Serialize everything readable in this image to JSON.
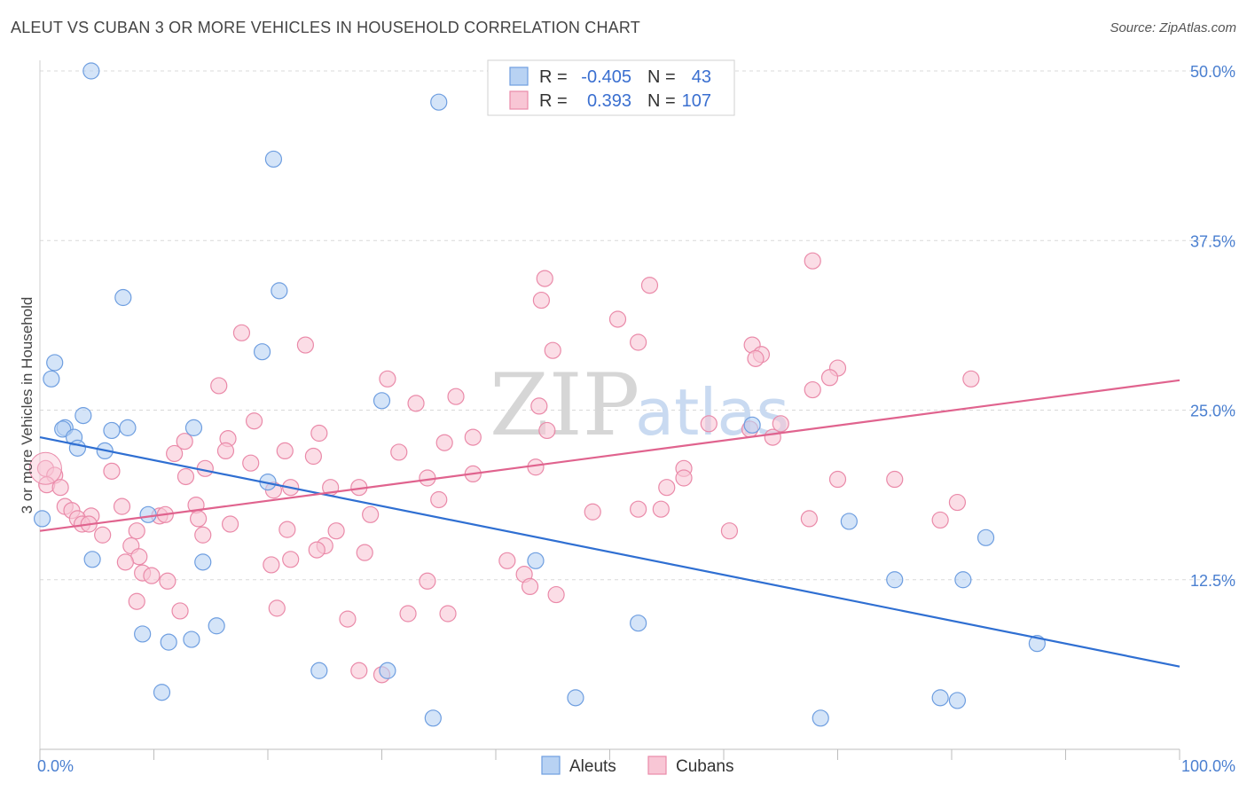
{
  "title": "ALEUT VS CUBAN 3 OR MORE VEHICLES IN HOUSEHOLD CORRELATION CHART",
  "source": "Source: ZipAtlas.com",
  "colors": {
    "aleuts_fill": "#b8d2f3",
    "aleuts_stroke": "#6e9ee0",
    "aleuts_line": "#2f6fd2",
    "cubans_fill": "#f8c6d5",
    "cubans_stroke": "#ea8aa9",
    "cubans_line": "#e0638e",
    "grid": "#d9d9d9",
    "axis_text": "#4a7fd0"
  },
  "legend": {
    "rows": [
      {
        "r_label": "R =",
        "r_value": "-0.405",
        "n_label": "N =",
        "n_value": "43"
      },
      {
        "r_label": "R =",
        "r_value": "0.393",
        "n_label": "N =",
        "n_value": "107"
      }
    ]
  },
  "bottom_legend": [
    "Aleuts",
    "Cubans"
  ],
  "watermark": {
    "zip": "ZIP",
    "atlas": "atlas"
  },
  "chart_data": {
    "type": "scatter",
    "title": "ALEUT VS CUBAN 3 OR MORE VEHICLES IN HOUSEHOLD CORRELATION CHART",
    "xlabel": "",
    "ylabel": "3 or more Vehicles in Household",
    "xlim": [
      0,
      100
    ],
    "ylim": [
      0,
      50
    ],
    "x_tick_labels": [
      "0.0%",
      "100.0%"
    ],
    "y_ticks": [
      12.5,
      25.0,
      37.5,
      50.0
    ],
    "y_tick_labels": [
      "12.5%",
      "25.0%",
      "37.5%",
      "50.0%"
    ],
    "grid": true,
    "series": [
      {
        "name": "Aleuts",
        "r": -0.405,
        "n": 43,
        "trend": {
          "x": [
            0,
            100
          ],
          "y": [
            23.0,
            6.1
          ]
        },
        "points": [
          [
            4.5,
            50.0
          ],
          [
            35.0,
            47.7
          ],
          [
            20.5,
            43.5
          ],
          [
            7.3,
            33.3
          ],
          [
            21.0,
            33.8
          ],
          [
            1.3,
            28.5
          ],
          [
            19.5,
            29.3
          ],
          [
            1.0,
            27.3
          ],
          [
            30.0,
            25.7
          ],
          [
            3.8,
            24.6
          ],
          [
            2.2,
            23.7
          ],
          [
            2.0,
            23.6
          ],
          [
            7.7,
            23.7
          ],
          [
            6.3,
            23.5
          ],
          [
            13.5,
            23.7
          ],
          [
            3.0,
            23.0
          ],
          [
            3.3,
            22.2
          ],
          [
            5.7,
            22.0
          ],
          [
            62.5,
            23.9
          ],
          [
            20.0,
            19.7
          ],
          [
            0.2,
            17.0
          ],
          [
            9.5,
            17.3
          ],
          [
            71.0,
            16.8
          ],
          [
            83.0,
            15.6
          ],
          [
            4.6,
            14.0
          ],
          [
            14.3,
            13.8
          ],
          [
            43.5,
            13.9
          ],
          [
            75.0,
            12.5
          ],
          [
            81.0,
            12.5
          ],
          [
            9.0,
            8.5
          ],
          [
            11.3,
            7.9
          ],
          [
            13.3,
            8.1
          ],
          [
            15.5,
            9.1
          ],
          [
            52.5,
            9.3
          ],
          [
            87.5,
            7.8
          ],
          [
            10.7,
            4.2
          ],
          [
            24.5,
            5.8
          ],
          [
            30.5,
            5.8
          ],
          [
            47.0,
            3.8
          ],
          [
            34.5,
            2.3
          ],
          [
            68.5,
            2.3
          ],
          [
            79.0,
            3.8
          ],
          [
            80.5,
            3.6
          ]
        ]
      },
      {
        "name": "Cubans",
        "r": 0.393,
        "n": 107,
        "trend": {
          "x": [
            0,
            100
          ],
          "y": [
            16.1,
            27.2
          ]
        },
        "points": [
          [
            67.8,
            36.0
          ],
          [
            44.3,
            34.7
          ],
          [
            53.5,
            34.2
          ],
          [
            44.0,
            33.1
          ],
          [
            50.7,
            31.7
          ],
          [
            17.7,
            30.7
          ],
          [
            23.3,
            29.8
          ],
          [
            52.5,
            30.0
          ],
          [
            62.5,
            29.8
          ],
          [
            45.0,
            29.4
          ],
          [
            63.3,
            29.1
          ],
          [
            62.8,
            28.8
          ],
          [
            70.0,
            28.1
          ],
          [
            69.3,
            27.4
          ],
          [
            81.7,
            27.3
          ],
          [
            30.5,
            27.3
          ],
          [
            15.7,
            26.8
          ],
          [
            67.8,
            26.5
          ],
          [
            36.5,
            26.0
          ],
          [
            33.0,
            25.5
          ],
          [
            43.8,
            25.3
          ],
          [
            18.8,
            24.2
          ],
          [
            58.7,
            24.0
          ],
          [
            65.0,
            24.0
          ],
          [
            62.3,
            23.6
          ],
          [
            44.5,
            23.5
          ],
          [
            24.5,
            23.3
          ],
          [
            38.0,
            23.0
          ],
          [
            64.3,
            23.0
          ],
          [
            16.5,
            22.9
          ],
          [
            12.7,
            22.7
          ],
          [
            35.5,
            22.6
          ],
          [
            11.8,
            21.8
          ],
          [
            21.5,
            22.0
          ],
          [
            16.3,
            22.0
          ],
          [
            31.5,
            21.9
          ],
          [
            24.0,
            21.6
          ],
          [
            18.5,
            21.1
          ],
          [
            14.5,
            20.7
          ],
          [
            0.5,
            20.7
          ],
          [
            6.3,
            20.5
          ],
          [
            43.5,
            20.8
          ],
          [
            56.5,
            20.7
          ],
          [
            12.8,
            20.1
          ],
          [
            38.0,
            20.3
          ],
          [
            34.0,
            20.0
          ],
          [
            56.5,
            20.0
          ],
          [
            70.0,
            19.9
          ],
          [
            75.0,
            19.9
          ],
          [
            1.3,
            20.2
          ],
          [
            55.0,
            19.3
          ],
          [
            0.6,
            19.5
          ],
          [
            1.8,
            19.3
          ],
          [
            22.0,
            19.3
          ],
          [
            25.5,
            19.3
          ],
          [
            28.0,
            19.3
          ],
          [
            20.5,
            19.1
          ],
          [
            35.0,
            18.4
          ],
          [
            80.5,
            18.2
          ],
          [
            7.2,
            17.9
          ],
          [
            13.7,
            18.0
          ],
          [
            2.2,
            17.9
          ],
          [
            2.8,
            17.6
          ],
          [
            48.5,
            17.5
          ],
          [
            52.5,
            17.7
          ],
          [
            54.5,
            17.7
          ],
          [
            29.0,
            17.3
          ],
          [
            4.5,
            17.2
          ],
          [
            10.5,
            17.2
          ],
          [
            11.0,
            17.3
          ],
          [
            3.3,
            17.0
          ],
          [
            13.9,
            17.0
          ],
          [
            67.5,
            17.0
          ],
          [
            79.0,
            16.9
          ],
          [
            3.7,
            16.6
          ],
          [
            4.3,
            16.6
          ],
          [
            16.7,
            16.6
          ],
          [
            8.5,
            16.1
          ],
          [
            21.7,
            16.2
          ],
          [
            26.0,
            16.1
          ],
          [
            60.5,
            16.1
          ],
          [
            5.5,
            15.8
          ],
          [
            14.3,
            15.8
          ],
          [
            8.0,
            15.0
          ],
          [
            25.0,
            15.0
          ],
          [
            24.3,
            14.7
          ],
          [
            28.5,
            14.5
          ],
          [
            8.7,
            14.2
          ],
          [
            22.0,
            14.0
          ],
          [
            7.5,
            13.8
          ],
          [
            20.3,
            13.6
          ],
          [
            41.0,
            13.9
          ],
          [
            9.0,
            13.0
          ],
          [
            9.8,
            12.8
          ],
          [
            42.5,
            12.9
          ],
          [
            11.2,
            12.4
          ],
          [
            34.0,
            12.4
          ],
          [
            43.0,
            12.0
          ],
          [
            45.3,
            11.4
          ],
          [
            8.5,
            10.9
          ],
          [
            12.3,
            10.2
          ],
          [
            20.8,
            10.4
          ],
          [
            32.3,
            10.0
          ],
          [
            35.8,
            10.0
          ],
          [
            27.0,
            9.6
          ],
          [
            28.0,
            5.8
          ],
          [
            30.0,
            5.5
          ]
        ]
      }
    ]
  }
}
